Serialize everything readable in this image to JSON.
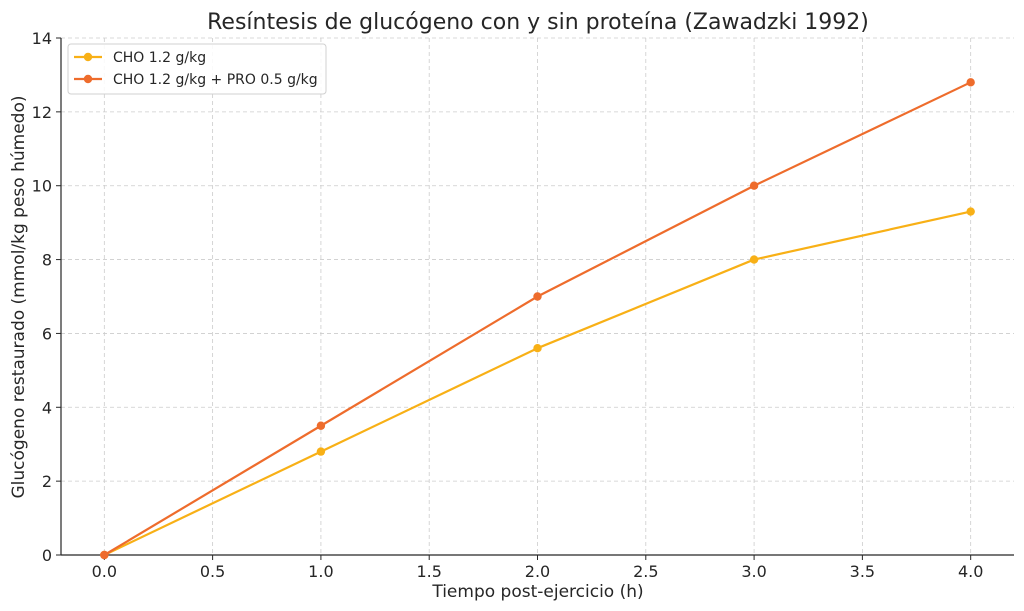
{
  "chart_data": {
    "type": "line",
    "title": "Resíntesis de glucógeno con y sin proteína (Zawadzki 1992)",
    "xlabel": "Tiempo post-ejercicio (h)",
    "ylabel": "Glucógeno restaurado (mmol/kg peso húmedo)",
    "x": [
      0,
      1,
      2,
      3,
      4
    ],
    "xlim": [
      -0.2,
      4.2
    ],
    "ylim": [
      0,
      14
    ],
    "x_ticks": [
      "0.0",
      "0.5",
      "1.0",
      "1.5",
      "2.0",
      "2.5",
      "3.0",
      "3.5",
      "4.0"
    ],
    "y_ticks": [
      "0",
      "2",
      "4",
      "6",
      "8",
      "10",
      "12",
      "14"
    ],
    "grid": true,
    "legend_position": "top-left",
    "series": [
      {
        "name": "CHO 1.2 g/kg",
        "values": [
          0,
          2.8,
          5.6,
          8.0,
          9.3
        ],
        "color": "#F8B016"
      },
      {
        "name": "CHO 1.2 g/kg + PRO 0.5 g/kg",
        "values": [
          0,
          3.5,
          7.0,
          10.0,
          12.8
        ],
        "color": "#EE6C2C"
      }
    ]
  }
}
